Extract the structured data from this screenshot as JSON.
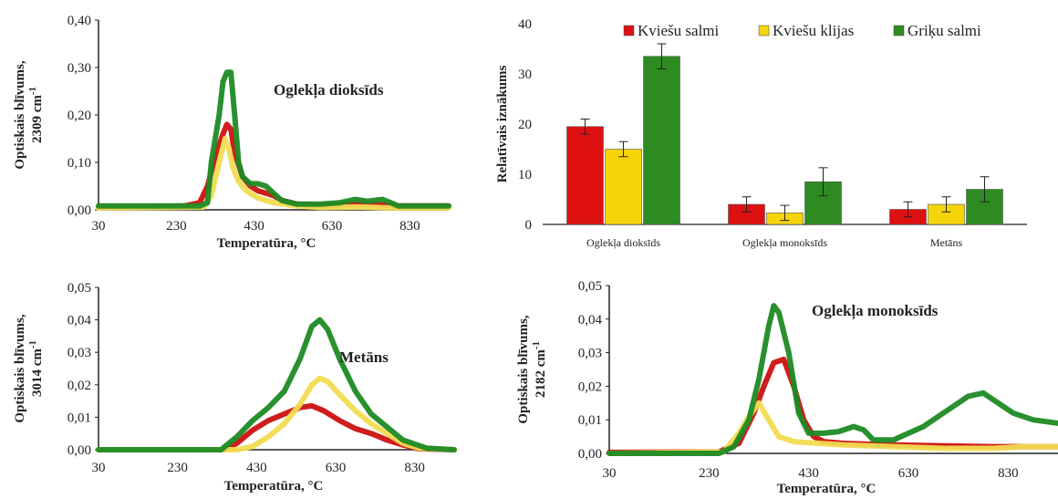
{
  "chart_data": [
    {
      "type": "line",
      "title": "Oglekļa dioksīds",
      "ylabel_line1": "Optiskais blīvums,",
      "ylabel_line2": "2309 cm",
      "ylabel_sup": "-1",
      "xlabel": "Temperatūra, °C",
      "xlim": [
        30,
        930
      ],
      "ylim": [
        0,
        0.4
      ],
      "xticks": [
        30,
        230,
        430,
        630,
        830
      ],
      "yticks": [
        0,
        0.1,
        0.2,
        0.3,
        0.4
      ],
      "ytick_labels": [
        "0,00",
        "0,10",
        "0,20",
        "0,30",
        "0,40"
      ],
      "grid": false,
      "series": [
        {
          "color": "#cc1111",
          "x": [
            30,
            250,
            290,
            310,
            330,
            350,
            360,
            370,
            380,
            400,
            420,
            440,
            460,
            480,
            500,
            540,
            600,
            690,
            760,
            800,
            930
          ],
          "y": [
            0.005,
            0.008,
            0.015,
            0.05,
            0.11,
            0.16,
            0.18,
            0.17,
            0.12,
            0.07,
            0.05,
            0.04,
            0.035,
            0.03,
            0.02,
            0.012,
            0.008,
            0.012,
            0.01,
            0.008,
            0.008
          ]
        },
        {
          "color": "#f2dc52",
          "x": [
            30,
            300,
            320,
            340,
            355,
            365,
            375,
            390,
            410,
            440,
            480,
            540,
            600,
            700,
            780,
            930
          ],
          "y": [
            0.004,
            0.006,
            0.03,
            0.1,
            0.15,
            0.13,
            0.09,
            0.06,
            0.04,
            0.025,
            0.015,
            0.008,
            0.005,
            0.006,
            0.004,
            0.004
          ]
        },
        {
          "color": "#1e8a24",
          "x": [
            30,
            290,
            310,
            320,
            340,
            350,
            360,
            370,
            380,
            390,
            400,
            420,
            440,
            460,
            480,
            500,
            540,
            600,
            650,
            690,
            720,
            760,
            790,
            800,
            930
          ],
          "y": [
            0.008,
            0.008,
            0.015,
            0.1,
            0.2,
            0.27,
            0.29,
            0.29,
            0.2,
            0.1,
            0.07,
            0.055,
            0.055,
            0.05,
            0.035,
            0.02,
            0.012,
            0.012,
            0.015,
            0.022,
            0.018,
            0.022,
            0.012,
            0.008,
            0.008
          ]
        }
      ]
    },
    {
      "type": "bar",
      "ylabel": "Relatīvais iznākums",
      "ylim": [
        0,
        40
      ],
      "yticks": [
        0,
        10,
        20,
        30,
        40
      ],
      "categories": [
        "Oglekļa dioksīds",
        "Oglekļa monoksīds",
        "Metāns"
      ],
      "legend_position": "top",
      "grid": false,
      "series": [
        {
          "name": "Kviešu salmi",
          "color": "#dd1111",
          "values": [
            19.5,
            4,
            3
          ],
          "errors": [
            1.5,
            1.5,
            1.5
          ]
        },
        {
          "name": "Kviešu klijas",
          "color": "#f5d40a",
          "values": [
            15,
            2.3,
            4
          ],
          "errors": [
            1.5,
            1.5,
            1.5
          ]
        },
        {
          "name": "Griķu salmi",
          "color": "#2e8b22",
          "values": [
            33.5,
            8.5,
            7
          ],
          "errors": [
            2.5,
            2.8,
            2.5
          ]
        }
      ]
    },
    {
      "type": "line",
      "title": "Metāns",
      "ylabel_line1": "Optiskais blīvums,",
      "ylabel_line2": "3014 cm",
      "ylabel_sup": "-1",
      "xlabel": "Temperatūra, °C",
      "xlim": [
        30,
        930
      ],
      "ylim": [
        0,
        0.05
      ],
      "xticks": [
        30,
        230,
        430,
        630,
        830
      ],
      "yticks": [
        0,
        0.01,
        0.02,
        0.03,
        0.04,
        0.05
      ],
      "ytick_labels": [
        "0,00",
        "0,01",
        "0,02",
        "0,03",
        "0,04",
        "0,05"
      ],
      "grid": false,
      "series": [
        {
          "color": "#cc1111",
          "x": [
            30,
            350,
            380,
            420,
            460,
            500,
            540,
            570,
            600,
            640,
            680,
            720,
            760,
            800,
            840,
            930
          ],
          "y": [
            0,
            0,
            0.002,
            0.006,
            0.009,
            0.011,
            0.013,
            0.0135,
            0.012,
            0.009,
            0.0065,
            0.005,
            0.003,
            0.0015,
            0.0003,
            0
          ]
        },
        {
          "color": "#f2dc52",
          "x": [
            30,
            380,
            420,
            460,
            500,
            540,
            570,
            590,
            610,
            640,
            680,
            720,
            760,
            800,
            840,
            930
          ],
          "y": [
            0,
            0,
            0.001,
            0.004,
            0.008,
            0.014,
            0.02,
            0.022,
            0.021,
            0.017,
            0.012,
            0.008,
            0.005,
            0.002,
            0.0005,
            0
          ]
        },
        {
          "color": "#1e8a24",
          "x": [
            30,
            340,
            380,
            420,
            460,
            500,
            540,
            570,
            590,
            610,
            640,
            680,
            720,
            760,
            800,
            860,
            930
          ],
          "y": [
            0,
            0,
            0.004,
            0.009,
            0.013,
            0.018,
            0.028,
            0.038,
            0.04,
            0.037,
            0.028,
            0.018,
            0.011,
            0.007,
            0.003,
            0.0005,
            0
          ]
        }
      ]
    },
    {
      "type": "line",
      "title": "Oglekļa monoksīds",
      "ylabel_line1": "Optiskais blīvums,",
      "ylabel_line2": "2182 cm",
      "ylabel_sup": "-1",
      "xlabel": "Temperatūra, °C",
      "xlim": [
        30,
        930
      ],
      "ylim": [
        0,
        0.05
      ],
      "xticks": [
        30,
        230,
        430,
        630,
        830
      ],
      "yticks": [
        0,
        0.01,
        0.02,
        0.03,
        0.04,
        0.05
      ],
      "ytick_labels": [
        "0,00",
        "0,01",
        "0,02",
        "0,03",
        "0,04",
        "0,05"
      ],
      "grid": false,
      "series": [
        {
          "color": "#cc1111",
          "x": [
            30,
            250,
            290,
            320,
            340,
            360,
            380,
            400,
            420,
            440,
            460,
            500,
            600,
            800,
            900,
            930
          ],
          "y": [
            0.0003,
            0.0005,
            0.003,
            0.012,
            0.02,
            0.027,
            0.028,
            0.02,
            0.01,
            0.005,
            0.0035,
            0.003,
            0.0025,
            0.002,
            0.002,
            0.002
          ]
        },
        {
          "color": "#f2dc52",
          "x": [
            30,
            260,
            290,
            310,
            330,
            350,
            370,
            400,
            450,
            500,
            600,
            700,
            800,
            860,
            900,
            930
          ],
          "y": [
            0,
            0.0005,
            0.006,
            0.011,
            0.015,
            0.01,
            0.005,
            0.0035,
            0.003,
            0.0025,
            0.002,
            0.0015,
            0.0015,
            0.002,
            0.002,
            0.002
          ]
        },
        {
          "color": "#1e8a24",
          "x": [
            30,
            250,
            280,
            310,
            330,
            350,
            360,
            370,
            390,
            410,
            430,
            460,
            490,
            520,
            540,
            560,
            600,
            660,
            700,
            750,
            780,
            800,
            840,
            880,
            930
          ],
          "y": [
            0,
            0,
            0.002,
            0.01,
            0.022,
            0.038,
            0.044,
            0.042,
            0.03,
            0.012,
            0.006,
            0.006,
            0.0065,
            0.008,
            0.007,
            0.004,
            0.004,
            0.008,
            0.012,
            0.017,
            0.018,
            0.016,
            0.012,
            0.01,
            0.009
          ]
        }
      ]
    }
  ]
}
